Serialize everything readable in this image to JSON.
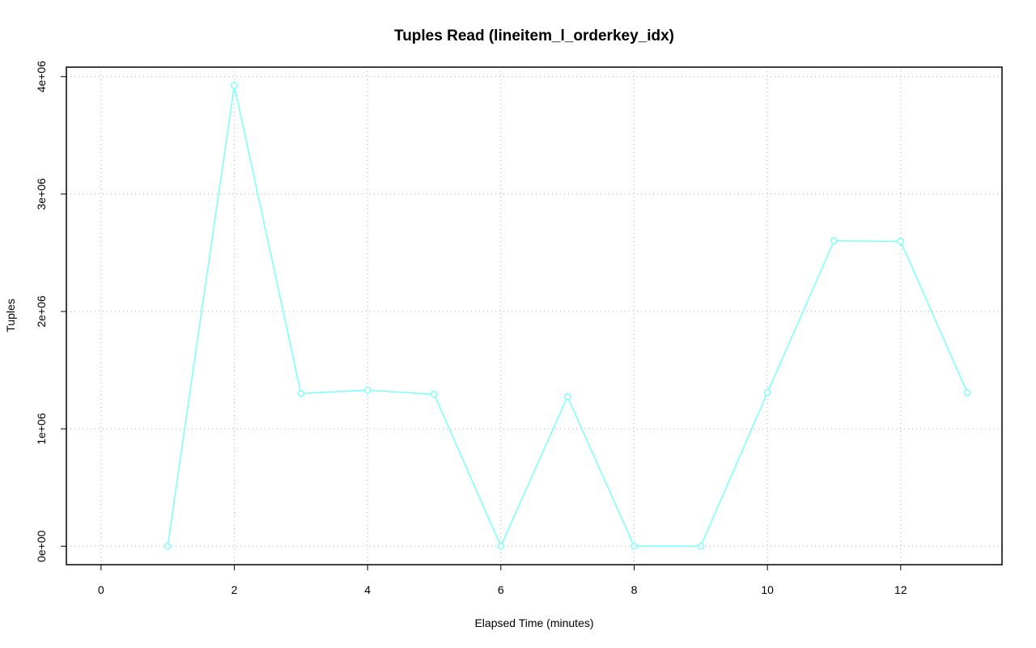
{
  "chart_data": {
    "type": "line",
    "title": "Tuples Read (lineitem_l_orderkey_idx)",
    "x_label": "Elapsed Time (minutes)",
    "y_label": "Tuples",
    "x": [
      1,
      2,
      3,
      4,
      5,
      6,
      7,
      8,
      9,
      10,
      11,
      12,
      13
    ],
    "values": [
      0,
      3924000,
      1301000,
      1329000,
      1294000,
      0,
      1274000,
      0,
      0,
      1308000,
      2602000,
      2596000,
      1308000
    ],
    "color": "#7fffff",
    "xlim": [
      -0.52,
      13.52
    ],
    "ylim": [
      -157000,
      4081000
    ],
    "xticks": [
      0,
      2,
      4,
      6,
      8,
      10,
      12
    ],
    "yticks": [
      {
        "value": 0,
        "label": "0e+00"
      },
      {
        "value": 1000000,
        "label": "1e+06"
      },
      {
        "value": 2000000,
        "label": "2e+06"
      },
      {
        "value": 3000000,
        "label": "3e+06"
      },
      {
        "value": 4000000,
        "label": "4e+06"
      }
    ],
    "grid": true
  }
}
